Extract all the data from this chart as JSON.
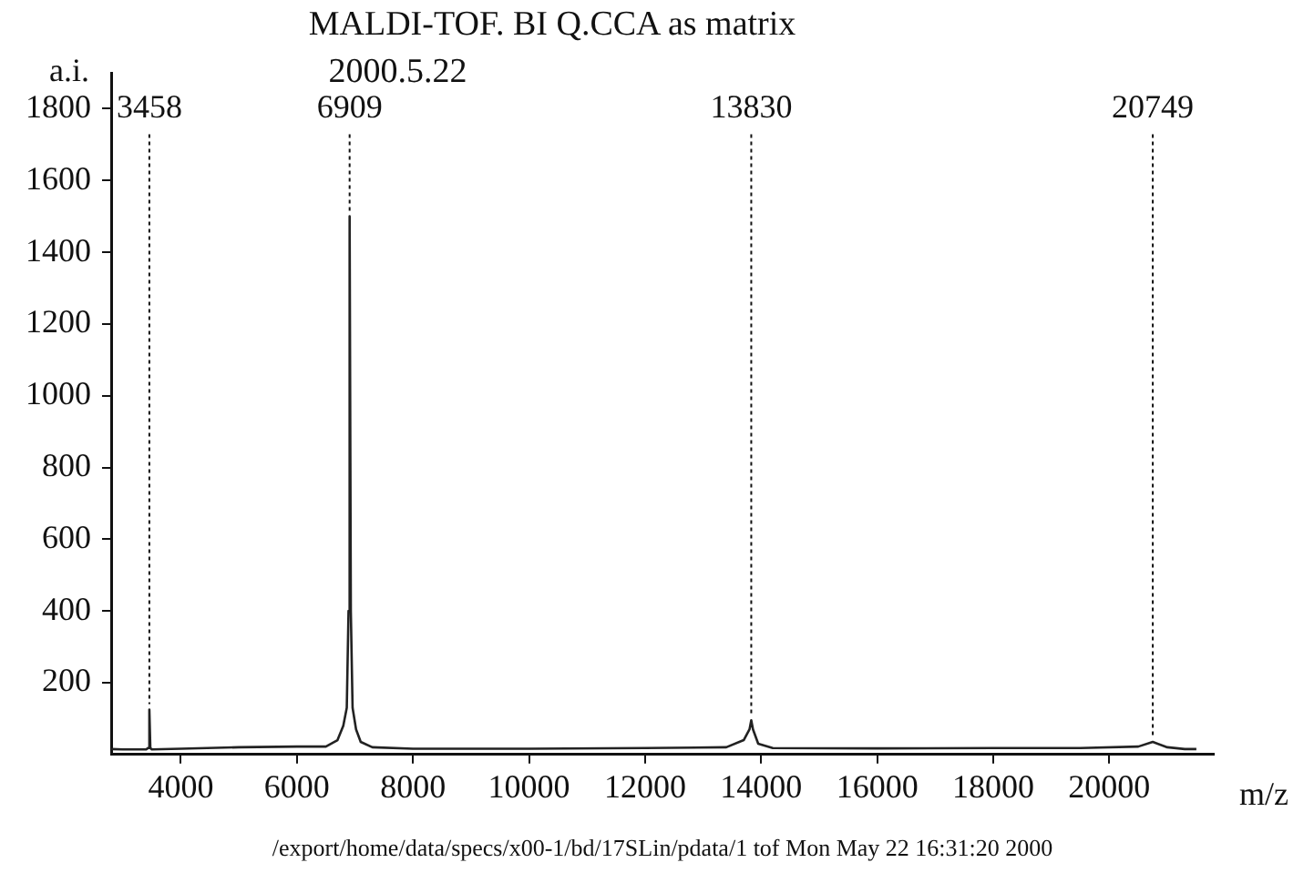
{
  "chart_data": {
    "type": "line",
    "title": "MALDI-TOF. BI Q.CCA as matrix",
    "subtitle": "2000.5.22",
    "xlabel": "m/z",
    "ylabel": "a.i.",
    "annotations": [
      {
        "text": "3458",
        "x": 3458,
        "y": 125
      },
      {
        "text": "6909",
        "x": 6909,
        "y": 1500
      },
      {
        "text": "13830",
        "x": 13830,
        "y": 95
      },
      {
        "text": "20749",
        "x": 20749,
        "y": 35
      },
      "/export/home/data/specs/x00-1/bd/17SLin/pdata/1 tof Mon May 22 16:31:20 2000"
    ],
    "x": [
      2800,
      3000,
      3400,
      3440,
      3458,
      3475,
      3500,
      4000,
      5000,
      6000,
      6500,
      6700,
      6800,
      6860,
      6890,
      6909,
      6930,
      6960,
      7020,
      7100,
      7300,
      8000,
      10000,
      12000,
      13400,
      13700,
      13800,
      13830,
      13860,
      13950,
      14200,
      16000,
      18000,
      19500,
      20500,
      20749,
      21000,
      21300,
      21500
    ],
    "series": [
      {
        "color": "#222222",
        "values": [
          15,
          14,
          14,
          18,
          125,
          18,
          14,
          16,
          20,
          22,
          22,
          40,
          80,
          130,
          400,
          1500,
          400,
          130,
          70,
          35,
          20,
          16,
          16,
          18,
          20,
          40,
          70,
          95,
          70,
          30,
          18,
          17,
          18,
          18,
          22,
          35,
          20,
          15,
          15
        ]
      }
    ],
    "xlim": [
      2800,
      21800
    ],
    "xticks": [
      4000,
      6000,
      8000,
      10000,
      12000,
      14000,
      16000,
      18000,
      20000
    ],
    "ylim": [
      0,
      1900
    ],
    "yticks": [
      200,
      400,
      600,
      800,
      1000,
      1200,
      1400,
      1600,
      1800
    ],
    "grid": false,
    "legend": false,
    "marker": "none",
    "line_style": "solid"
  }
}
